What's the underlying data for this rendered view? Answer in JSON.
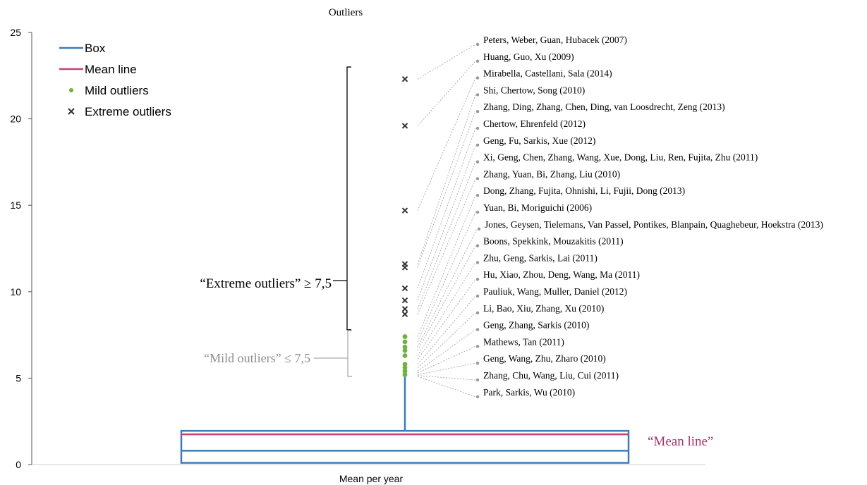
{
  "chart_data": {
    "type": "box",
    "title": "Outliers",
    "xlabel": "Mean per year",
    "ylabel": "",
    "ylim": [
      0,
      25
    ],
    "yticks": [
      0,
      5,
      10,
      15,
      20,
      25
    ],
    "grid": false,
    "legend_position": "top-left",
    "legend": [
      {
        "label": "Box",
        "kind": "box-line",
        "color": "#3C7DB8"
      },
      {
        "label": "Mean line",
        "kind": "mean-line",
        "color": "#C2427A"
      },
      {
        "label": "Mild outliers",
        "kind": "mild-dot",
        "color": "#6DB33F"
      },
      {
        "label": "Extreme outliers",
        "kind": "extreme-x",
        "color": "#333333"
      }
    ],
    "box": {
      "q1": 0.1,
      "median": 0.8,
      "mean": 1.75,
      "q3": 1.95,
      "whisker_high": 5.1,
      "whisker_low": 0.1
    },
    "extreme_outliers": [
      22.3,
      19.6,
      14.7,
      11.6,
      11.4,
      10.2,
      9.5,
      9.0,
      8.7
    ],
    "mild_outliers": [
      7.4,
      7.1,
      6.8,
      6.6,
      6.3,
      5.8,
      5.6,
      5.4,
      5.2
    ],
    "extreme_annotation": "“Extreme outliers” ≥ 7,5",
    "mild_annotation": "“Mild outliers” ≤ 7,5",
    "mean_annotation": "“Mean line”",
    "references": [
      "Peters, Weber, Guan, Hubacek (2007)",
      "Huang, Guo, Xu (2009)",
      "Mirabella, Castellani, Sala (2014)",
      "Shi, Chertow, Song (2010)",
      "Zhang, Ding, Zhang, Chen, Ding, van Loosdrecht, Zeng (2013)",
      "Chertow, Ehrenfeld (2012)",
      "Geng, Fu, Sarkis, Xue (2012)",
      "Xi, Geng, Chen, Zhang, Wang, Xue, Dong, Liu, Ren, Fujita, Zhu (2011)",
      "Zhang, Yuan, Bi, Zhang, Liu (2010)",
      "Dong, Zhang, Fujita, Ohnishi, Li, Fujii, Dong (2013)",
      "Yuan, Bi, Moriguichi (2006)",
      "Jones, Geysen, Tielemans,  Van Passel, Pontikes, Blanpain, Quaghebeur, Hoekstra (2013)",
      "Boons, Spekkink, Mouzakitis (2011)",
      "Zhu, Geng, Sarkis, Lai (2011)",
      "Hu, Xiao, Zhou, Deng, Wang, Ma (2011)",
      "Pauliuk, Wang, Muller, Daniel (2012)",
      "Li, Bao, Xiu, Zhang, Xu (2010)",
      "Geng, Zhang, Sarkis (2010)",
      "Mathews, Tan (2011)",
      "Geng, Wang, Zhu, Zharo (2010)",
      "Zhang, Chu, Wang, Liu, Cui  (2011)",
      "Park, Sarkis, Wu (2010)"
    ],
    "reference_points": [
      22.3,
      19.6,
      14.7,
      11.6,
      11.4,
      10.2,
      9.5,
      9.0,
      8.7,
      7.4,
      7.1,
      6.8,
      6.6,
      6.3,
      6.1,
      5.8,
      5.6,
      5.4,
      5.3,
      5.2,
      5.15,
      5.1
    ]
  }
}
